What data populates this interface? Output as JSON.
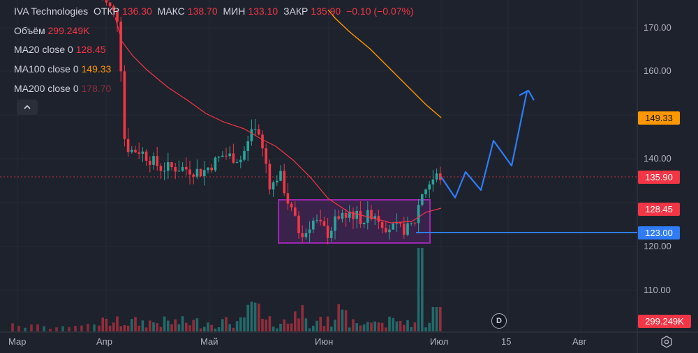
{
  "header": {
    "ticker": "IVA Technologies",
    "open_label": "ОТКР",
    "open_value": "136.30",
    "high_label": "МАКС",
    "high_value": "138.70",
    "low_label": "МИН",
    "low_value": "133.10",
    "close_label": "ЗАКР",
    "close_value": "135.90",
    "change": "−0.10 (−0.07%)"
  },
  "legend": {
    "volume_label": "Объём",
    "volume_value": "299.249K",
    "ma20_label": "MA20 close 0",
    "ma20_value": "128.45",
    "ma100_label": "MA100 close 0",
    "ma100_value": "149.33",
    "ma200_label": "MA200 close 0",
    "ma200_value": "178.70"
  },
  "price_scale": {
    "ticks": [
      "170.00",
      "160.00",
      "150.00",
      "140.00",
      "130.00",
      "120.00",
      "110.00"
    ]
  },
  "badges": {
    "ma100": "149.33",
    "last": "135.90",
    "ma20": "128.45",
    "level": "123.00",
    "volume": "299.249K"
  },
  "time_scale": {
    "ticks": [
      "Мар",
      "Апр",
      "Май",
      "Июн",
      "Июл",
      "15",
      "Авг"
    ]
  },
  "controls": {
    "event_marker": "D"
  },
  "colors": {
    "bg": "#1e222d",
    "up": "#26a69a",
    "down": "#f23645",
    "ma20": "#f23645",
    "ma100": "#ff9800",
    "drawing": "#2f7cf6",
    "box": "#9c27b0",
    "grid": "#2a2e39"
  },
  "chart_data": {
    "type": "candlestick",
    "y_range": [
      103.7,
      176.4
    ],
    "x_labels": [
      "Мар",
      "Апр",
      "Май",
      "Июн",
      "Июл",
      "15",
      "Авг"
    ],
    "last_price": 135.9,
    "range_box": {
      "top": 131.0,
      "bottom": 121.0
    },
    "horizontal_level": 123.0,
    "projection": [
      135.9,
      129.5,
      137,
      131.5,
      144.5,
      138.5,
      155.5,
      154.5
    ],
    "ma100_values": [
      176,
      168.5,
      161.5,
      155.5,
      151,
      149.3
    ],
    "ma20_values": [
      160,
      148,
      140,
      134,
      126,
      124.5,
      124.5,
      128.45
    ]
  }
}
